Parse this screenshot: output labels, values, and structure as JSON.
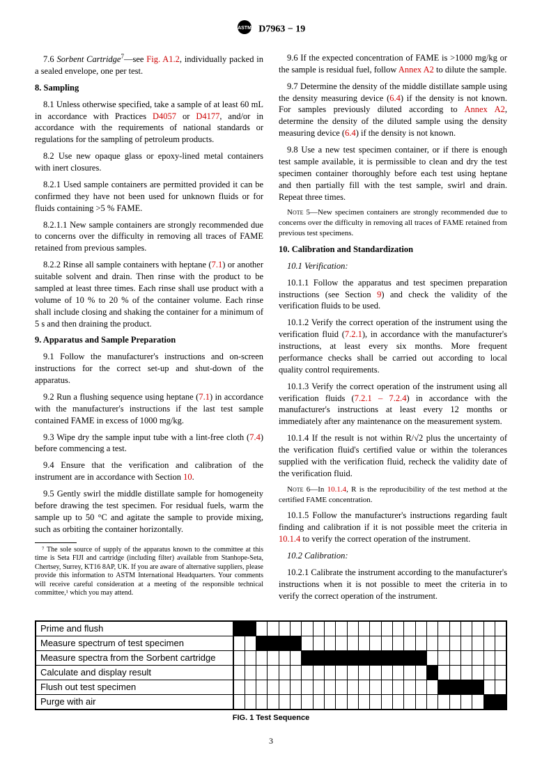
{
  "doc_header": "D7963 − 19",
  "left": {
    "p_7_6": "7.6 Sorbent Cartridge⁷—see Fig. A1.2, individually packed in a sealed envelope, one per test.",
    "h8": "8. Sampling",
    "p_8_1": "8.1 Unless otherwise specified, take a sample of at least 60 mL in accordance with Practices D4057 or D4177, and/or in accordance with the requirements of national standards or regulations for the sampling of petroleum products.",
    "p_8_2": "8.2 Use new opaque glass or epoxy-lined metal containers with inert closures.",
    "p_8_2_1": "8.2.1 Used sample containers are permitted provided it can be confirmed they have not been used for unknown fluids or for fluids containing >5 % FAME.",
    "p_8_2_1_1": "8.2.1.1 New sample containers are strongly recommended due to concerns over the difficulty in removing all traces of FAME retained from previous samples.",
    "p_8_2_2": "8.2.2 Rinse all sample containers with heptane (7.1) or another suitable solvent and drain. Then rinse with the product to be sampled at least three times. Each rinse shall use product with a volume of 10 % to 20 % of the container volume. Each rinse shall include closing and shaking the container for a minimum of 5 s and then draining the product.",
    "h9": "9. Apparatus and Sample Preparation",
    "p_9_1": "9.1 Follow the manufacturer's instructions and on-screen instructions for the correct set-up and shut-down of the apparatus.",
    "p_9_2": "9.2 Run a flushing sequence using heptane (7.1) in accordance with the manufacturer's instructions if the last test sample contained FAME in excess of 1000 mg/kg.",
    "p_9_3": "9.3 Wipe dry the sample input tube with a lint-free cloth (7.4) before commencing a test.",
    "p_9_4": "9.4 Ensure that the verification and calibration of the instrument are in accordance with Section 10.",
    "p_9_5": "9.5 Gently swirl the middle distillate sample for homogeneity before drawing the test specimen. For residual fuels, warm the sample up to 50 °C and agitate the sample to provide mixing, such as orbiting the container horizontally.",
    "footnote7": "⁷ The sole source of supply of the apparatus known to the committee at this time is Seta FIJI and cartridge (including filter) available from Stanhope-Seta, Chertsey, Surrey, KT16 8AP, UK. If you are aware of alternative suppliers, please provide this information to ASTM International Headquarters. Your comments will receive careful consideration at a meeting of the responsible technical committee,¹ which you may attend."
  },
  "right": {
    "p_9_6": "9.6 If the expected concentration of FAME is >1000 mg/kg or the sample is residual fuel, follow Annex A2 to dilute the sample.",
    "p_9_7": "9.7 Determine the density of the middle distillate sample using the density measuring device (6.4) if the density is not known. For samples previously diluted according to Annex A2, determine the density of the diluted sample using the density measuring device (6.4) if the density is not known.",
    "p_9_8": "9.8 Use a new test specimen container, or if there is enough test sample available, it is permissible to clean and dry the test specimen container thoroughly before each test using heptane and then partially fill with the test sample, swirl and drain. Repeat three times.",
    "note5": "Note 5—New specimen containers are strongly recommended due to concerns over the difficulty in removing all traces of FAME retained from previous test specimens.",
    "h10": "10. Calibration and Standardization",
    "s10_1": "10.1 Verification:",
    "p_10_1_1": "10.1.1 Follow the apparatus and test specimen preparation instructions (see Section 9) and check the validity of the verification fluids to be used.",
    "p_10_1_2": "10.1.2 Verify the correct operation of the instrument using the verification fluid (7.2.1), in accordance with the manufacturer's instructions, at least every six months. More frequent performance checks shall be carried out according to local quality control requirements.",
    "p_10_1_3": "10.1.3 Verify the correct operation of the instrument using all verification fluids (7.2.1 – 7.2.4) in accordance with the manufacturer's instructions at least every 12 months or immediately after any maintenance on the measurement system.",
    "p_10_1_4": "10.1.4 If the result is not within R/√2 plus the uncertainty of the verification fluid's certified value or within the tolerances supplied with the verification fluid, recheck the validity date of the verification fluid.",
    "note6": "Note 6—In 10.1.4, R is the reproducibility of the test method at the certified FAME concentration.",
    "p_10_1_5": "10.1.5 Follow the manufacturer's instructions regarding fault finding and calibration if it is not possible meet the criteria in 10.1.4 to verify the correct operation of the instrument.",
    "s10_2": "10.2 Calibration:",
    "p_10_2_1": "10.2.1 Calibrate the instrument according to the manufacturer's instructions when it is not possible to meet the criteria in to verify the correct operation of the instrument."
  },
  "fig1": {
    "caption": "FIG. 1 Test Sequence",
    "rows": [
      {
        "label": "Prime and flush",
        "cells": [
          1,
          1,
          0,
          0,
          0,
          0,
          0,
          0,
          0,
          0,
          0,
          0,
          0,
          0,
          0,
          0,
          0,
          0,
          0,
          0,
          0,
          0,
          0,
          0
        ]
      },
      {
        "label": "Measure spectrum of test specimen",
        "cells": [
          0,
          0,
          1,
          1,
          1,
          1,
          0,
          0,
          0,
          0,
          0,
          0,
          0,
          0,
          0,
          0,
          0,
          0,
          0,
          0,
          0,
          0,
          0,
          0
        ]
      },
      {
        "label": "Measure spectra from the Sorbent cartridge",
        "cells": [
          0,
          0,
          0,
          0,
          0,
          0,
          1,
          1,
          1,
          1,
          1,
          1,
          1,
          1,
          1,
          1,
          1,
          0,
          0,
          0,
          0,
          0,
          0,
          0
        ]
      },
      {
        "label": "Calculate and display result",
        "cells": [
          0,
          0,
          0,
          0,
          0,
          0,
          0,
          0,
          0,
          0,
          0,
          0,
          0,
          0,
          0,
          0,
          0,
          1,
          0,
          0,
          0,
          0,
          0,
          0
        ]
      },
      {
        "label": "Flush out test specimen",
        "cells": [
          0,
          0,
          0,
          0,
          0,
          0,
          0,
          0,
          0,
          0,
          0,
          0,
          0,
          0,
          0,
          0,
          0,
          0,
          1,
          1,
          1,
          1,
          0,
          0
        ]
      },
      {
        "label": "Purge with air",
        "cells": [
          0,
          0,
          0,
          0,
          0,
          0,
          0,
          0,
          0,
          0,
          0,
          0,
          0,
          0,
          0,
          0,
          0,
          0,
          0,
          0,
          0,
          0,
          1,
          1
        ]
      }
    ]
  },
  "page_number": "3"
}
